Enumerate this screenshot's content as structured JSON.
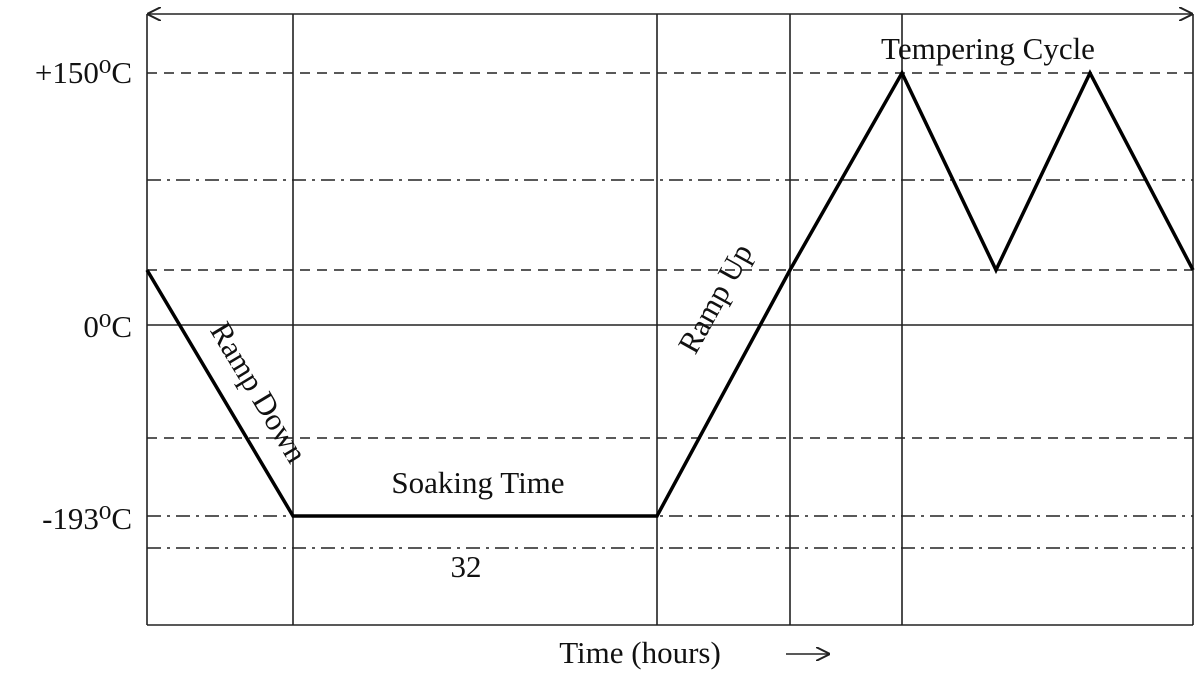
{
  "y_labels": [
    "+150⁰C",
    "0⁰C",
    "-193⁰C"
  ],
  "annotations": {
    "tempering": "Tempering Cycle",
    "ramp_down": "Ramp Down",
    "soaking": "Soaking Time",
    "soaking_hours": "32",
    "ramp_up": "Ramp Up"
  },
  "x_axis_label": "Time (hours)"
}
